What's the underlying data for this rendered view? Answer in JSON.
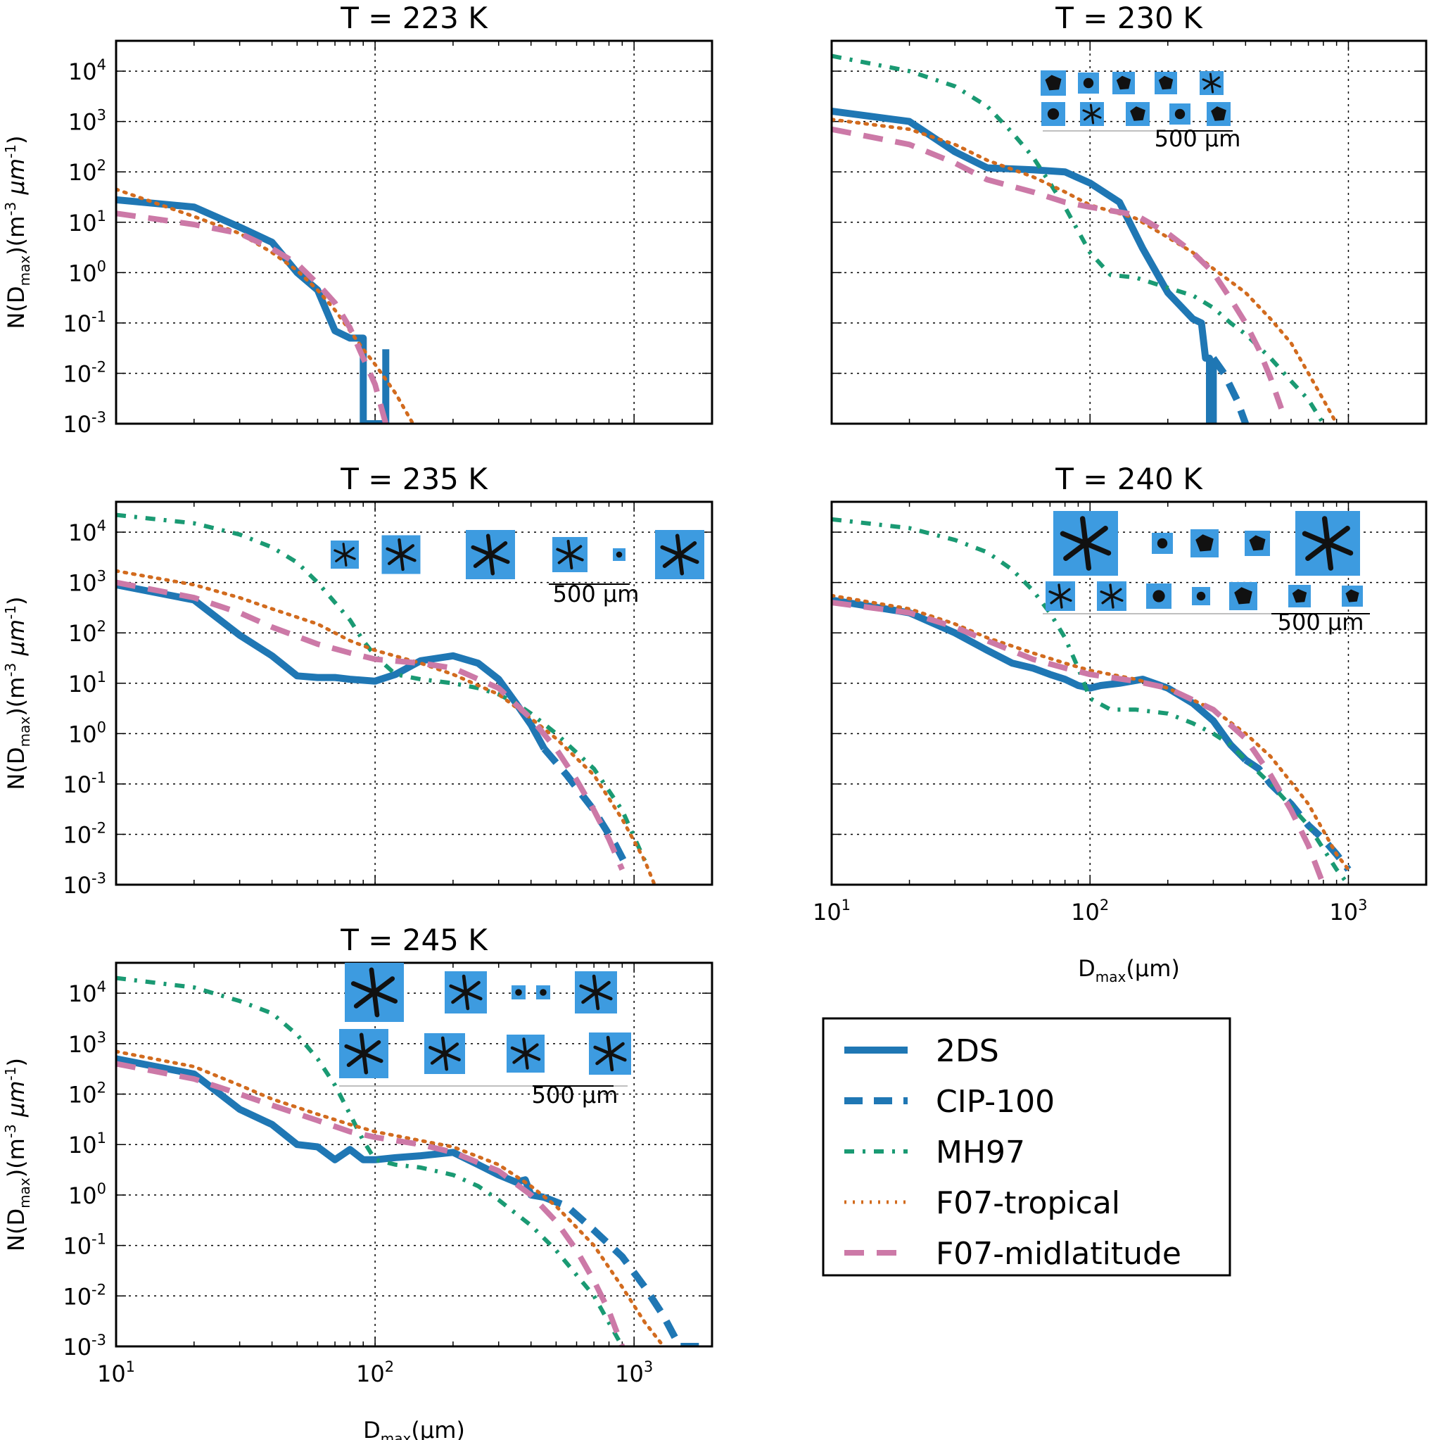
{
  "figure": {
    "x_axis_label": "D",
    "x_axis_label_sub": "max",
    "x_axis_label_unit": "(μm)",
    "y_axis_label": "N(D",
    "y_axis_label_sub": "max",
    "y_axis_label_unit": ")(m",
    "y_axis_label_exp1": "-3",
    "y_axis_label_unit2": " μm",
    "y_axis_label_exp2": "-1",
    "y_axis_label_close": ")",
    "x_ticks": [
      {
        "base": "10",
        "exp": "1"
      },
      {
        "base": "10",
        "exp": "2"
      },
      {
        "base": "10",
        "exp": "3"
      }
    ],
    "y_ticks": [
      {
        "base": "10",
        "exp": "4"
      },
      {
        "base": "10",
        "exp": "3"
      },
      {
        "base": "10",
        "exp": "2"
      },
      {
        "base": "10",
        "exp": "1"
      },
      {
        "base": "10",
        "exp": "0"
      },
      {
        "base": "10",
        "exp": "-1"
      },
      {
        "base": "10",
        "exp": "-2"
      },
      {
        "base": "10",
        "exp": "-3"
      }
    ],
    "scale_bar_label": "500 μm"
  },
  "colors": {
    "2DS": "#1f77b4",
    "CIP-100": "#1f77b4",
    "MH97": "#1a9a73",
    "F07-tropical": "#d26b1e",
    "F07-midlatitude": "#cc79a7",
    "grid": "#000000",
    "particle_bg": "#3d9be0"
  },
  "legend": [
    {
      "name": "2DS",
      "style": "solid"
    },
    {
      "name": "CIP-100",
      "style": "dashed"
    },
    {
      "name": "MH97",
      "style": "dashdot"
    },
    {
      "name": "F07-tropical",
      "style": "dotted"
    },
    {
      "name": "F07-midlatitude",
      "style": "dashed_light"
    }
  ],
  "chart_data": [
    {
      "type": "line",
      "title": "T = 223 K",
      "xscale": "log",
      "yscale": "log",
      "xlim": [
        10,
        2000
      ],
      "ylim": [
        0.001,
        40000
      ],
      "xlabel": "",
      "ylabel": "N(Dmax)(m-3 μm-1)",
      "show_x_ticks": false,
      "show_y_ticks": true,
      "series": [
        {
          "name": "2DS",
          "x": [
            10,
            20,
            30,
            40,
            50,
            60,
            70,
            80,
            90,
            90,
            110,
            110
          ],
          "y": [
            28,
            20,
            8,
            4,
            1.0,
            0.45,
            0.07,
            0.05,
            0.05,
            0.001,
            0.001,
            0.03
          ]
        },
        {
          "name": "F07-tropical",
          "x": [
            10,
            20,
            30,
            40,
            50,
            60,
            70,
            80,
            90,
            100,
            120,
            140
          ],
          "y": [
            45,
            13,
            6,
            2.5,
            1.1,
            0.45,
            0.18,
            0.07,
            0.03,
            0.015,
            0.004,
            0.001
          ]
        },
        {
          "name": "F07-midlatitude",
          "x": [
            10,
            20,
            30,
            40,
            50,
            60,
            70,
            80,
            90,
            100,
            110
          ],
          "y": [
            15,
            9,
            6,
            3,
            1.5,
            0.6,
            0.25,
            0.08,
            0.02,
            0.006,
            0.001
          ]
        }
      ],
      "particle_images": false
    },
    {
      "type": "line",
      "title": "T = 230 K",
      "xscale": "log",
      "yscale": "log",
      "xlim": [
        10,
        2000
      ],
      "ylim": [
        0.001,
        40000
      ],
      "xlabel": "",
      "ylabel": "",
      "show_x_ticks": false,
      "show_y_ticks": false,
      "series": [
        {
          "name": "2DS",
          "x": [
            10,
            20,
            30,
            40,
            60,
            80,
            100,
            130,
            160,
            200,
            250,
            270,
            280,
            290,
            290,
            300,
            300
          ],
          "y": [
            1600,
            1000,
            250,
            120,
            110,
            100,
            60,
            25,
            3,
            0.4,
            0.12,
            0.1,
            0.02,
            0.02,
            0.001,
            0.001,
            0.02
          ]
        },
        {
          "name": "CIP-100",
          "x": [
            300,
            330,
            370,
            400
          ],
          "y": [
            0.02,
            0.01,
            0.003,
            0.001
          ]
        },
        {
          "name": "MH97",
          "x": [
            10,
            20,
            30,
            40,
            50,
            60,
            70,
            80,
            100,
            120,
            150,
            200,
            250,
            300,
            350,
            400,
            500,
            600,
            700,
            800
          ],
          "y": [
            20000,
            10000,
            5000,
            2000,
            600,
            200,
            60,
            20,
            2.5,
            0.9,
            0.8,
            0.5,
            0.35,
            0.2,
            0.1,
            0.06,
            0.02,
            0.007,
            0.003,
            0.001
          ]
        },
        {
          "name": "F07-tropical",
          "x": [
            10,
            20,
            30,
            40,
            60,
            80,
            100,
            150,
            200,
            250,
            300,
            400,
            500,
            600,
            700,
            800,
            900
          ],
          "y": [
            1100,
            700,
            350,
            170,
            80,
            40,
            22,
            12,
            5,
            2.5,
            1.2,
            0.4,
            0.12,
            0.04,
            0.01,
            0.003,
            0.001
          ]
        },
        {
          "name": "F07-midlatitude",
          "x": [
            10,
            20,
            30,
            40,
            60,
            80,
            100,
            150,
            200,
            250,
            300,
            350,
            400,
            450,
            500,
            550
          ],
          "y": [
            700,
            350,
            150,
            70,
            40,
            25,
            20,
            14,
            6,
            2.5,
            1.0,
            0.3,
            0.1,
            0.03,
            0.008,
            0.002
          ]
        }
      ],
      "particle_images": true
    },
    {
      "type": "line",
      "title": "T = 235 K",
      "xscale": "log",
      "yscale": "log",
      "xlim": [
        10,
        2000
      ],
      "ylim": [
        0.001,
        40000
      ],
      "xlabel": "",
      "ylabel": "N(Dmax)(m-3 μm-1)",
      "show_x_ticks": false,
      "show_y_ticks": true,
      "series": [
        {
          "name": "2DS",
          "x": [
            10,
            20,
            30,
            40,
            50,
            60,
            70,
            80,
            100,
            120,
            150,
            200,
            250,
            300,
            350,
            400,
            450
          ],
          "y": [
            900,
            450,
            90,
            35,
            14,
            13,
            13,
            12,
            11,
            15,
            28,
            35,
            25,
            12,
            4,
            1.5,
            0.5
          ]
        },
        {
          "name": "CIP-100",
          "x": [
            450,
            550,
            700,
            850,
            950
          ],
          "y": [
            0.5,
            0.15,
            0.03,
            0.006,
            0.002
          ]
        },
        {
          "name": "MH97",
          "x": [
            10,
            20,
            30,
            40,
            50,
            60,
            70,
            80,
            90,
            100,
            120,
            150,
            200,
            250,
            300,
            350,
            400,
            500,
            700,
            900,
            1100
          ],
          "y": [
            22000,
            15000,
            9000,
            5000,
            2500,
            1000,
            400,
            180,
            70,
            35,
            15,
            12,
            10,
            8,
            6,
            4,
            2.5,
            1.0,
            0.2,
            0.03,
            0.003
          ]
        },
        {
          "name": "F07-tropical",
          "x": [
            10,
            20,
            30,
            40,
            60,
            80,
            100,
            150,
            200,
            300,
            400,
            500,
            700,
            900,
            1100,
            1200
          ],
          "y": [
            1700,
            900,
            500,
            300,
            150,
            70,
            45,
            25,
            15,
            6,
            2,
            0.8,
            0.15,
            0.02,
            0.003,
            0.001
          ]
        },
        {
          "name": "F07-midlatitude",
          "x": [
            10,
            20,
            30,
            40,
            60,
            80,
            100,
            150,
            200,
            300,
            400,
            500,
            600,
            700,
            800,
            900
          ],
          "y": [
            1000,
            500,
            250,
            130,
            60,
            40,
            30,
            25,
            20,
            8,
            2,
            0.5,
            0.12,
            0.03,
            0.008,
            0.002
          ]
        }
      ],
      "particle_images": true
    },
    {
      "type": "line",
      "title": "T = 240 K",
      "xscale": "log",
      "yscale": "log",
      "xlim": [
        10,
        2000
      ],
      "ylim": [
        0.001,
        40000
      ],
      "xlabel": "Dmax(μm)",
      "ylabel": "",
      "show_x_ticks": true,
      "show_y_ticks": false,
      "series": [
        {
          "name": "2DS",
          "x": [
            10,
            20,
            30,
            40,
            50,
            60,
            70,
            80,
            90,
            100,
            110,
            130,
            160,
            200,
            250,
            300,
            350,
            400
          ],
          "y": [
            450,
            250,
            100,
            45,
            25,
            20,
            15,
            12,
            9,
            8,
            9,
            10,
            12,
            8,
            4,
            1.8,
            0.6,
            0.3
          ]
        },
        {
          "name": "CIP-100",
          "x": [
            400,
            450,
            500,
            600,
            700,
            800,
            900,
            1000
          ],
          "y": [
            0.3,
            0.2,
            0.1,
            0.04,
            0.015,
            0.008,
            0.004,
            0.002
          ]
        },
        {
          "name": "MH97",
          "x": [
            10,
            20,
            30,
            40,
            50,
            60,
            70,
            80,
            90,
            100,
            120,
            150,
            200,
            250,
            300,
            350,
            400,
            500,
            700,
            900,
            1000
          ],
          "y": [
            18000,
            12000,
            7000,
            4000,
            1800,
            700,
            250,
            80,
            20,
            5,
            3,
            3,
            2.5,
            1.6,
            1.0,
            0.6,
            0.3,
            0.1,
            0.015,
            0.002,
            0.001
          ]
        },
        {
          "name": "F07-tropical",
          "x": [
            10,
            20,
            30,
            40,
            60,
            80,
            100,
            150,
            200,
            300,
            400,
            500,
            700,
            900,
            1000
          ],
          "y": [
            550,
            300,
            150,
            80,
            40,
            25,
            18,
            12,
            8,
            3,
            1.0,
            0.35,
            0.04,
            0.004,
            0.002
          ]
        },
        {
          "name": "F07-midlatitude",
          "x": [
            10,
            20,
            30,
            40,
            60,
            80,
            100,
            150,
            200,
            300,
            400,
            500,
            600,
            700,
            800
          ],
          "y": [
            400,
            250,
            130,
            70,
            30,
            20,
            15,
            11,
            8,
            3,
            0.8,
            0.15,
            0.03,
            0.006,
            0.001
          ]
        }
      ],
      "particle_images": true
    },
    {
      "type": "line",
      "title": "T = 245 K",
      "xscale": "log",
      "yscale": "log",
      "xlim": [
        10,
        2000
      ],
      "ylim": [
        0.001,
        40000
      ],
      "xlabel": "Dmax(μm)",
      "ylabel": "N(Dmax)(m-3 μm-1)",
      "show_x_ticks": true,
      "show_y_ticks": true,
      "series": [
        {
          "name": "2DS",
          "x": [
            10,
            20,
            30,
            40,
            50,
            60,
            70,
            80,
            90,
            100,
            120,
            150,
            200,
            250,
            300,
            350,
            380,
            400,
            450
          ],
          "y": [
            500,
            250,
            50,
            25,
            10,
            9,
            5,
            8,
            5,
            5,
            5.5,
            6,
            7,
            4,
            2.5,
            1.8,
            2,
            1.0,
            0.9
          ]
        },
        {
          "name": "CIP-100",
          "x": [
            450,
            550,
            700,
            900,
            1100,
            1300,
            1500,
            1800
          ],
          "y": [
            0.9,
            0.6,
            0.2,
            0.06,
            0.015,
            0.004,
            0.001,
            0.001
          ]
        },
        {
          "name": "MH97",
          "x": [
            10,
            20,
            30,
            40,
            50,
            60,
            70,
            80,
            90,
            100,
            120,
            150,
            200,
            250,
            300,
            400,
            500,
            700,
            900
          ],
          "y": [
            20000,
            13000,
            7000,
            4000,
            1500,
            500,
            150,
            40,
            12,
            5,
            4,
            3.5,
            2.5,
            1.5,
            0.8,
            0.25,
            0.08,
            0.01,
            0.001
          ]
        },
        {
          "name": "F07-tropical",
          "x": [
            10,
            20,
            30,
            40,
            60,
            80,
            100,
            150,
            200,
            300,
            400,
            500,
            700,
            900,
            1100,
            1300
          ],
          "y": [
            700,
            350,
            150,
            80,
            40,
            25,
            18,
            12,
            9,
            4,
            1.5,
            0.6,
            0.1,
            0.015,
            0.003,
            0.001
          ]
        },
        {
          "name": "F07-midlatitude",
          "x": [
            10,
            20,
            30,
            40,
            60,
            80,
            100,
            150,
            200,
            300,
            400,
            500,
            600,
            700,
            800,
            900
          ],
          "y": [
            400,
            200,
            100,
            60,
            30,
            18,
            14,
            10,
            7,
            3,
            1.0,
            0.3,
            0.08,
            0.02,
            0.005,
            0.001
          ]
        }
      ],
      "particle_images": true
    }
  ]
}
